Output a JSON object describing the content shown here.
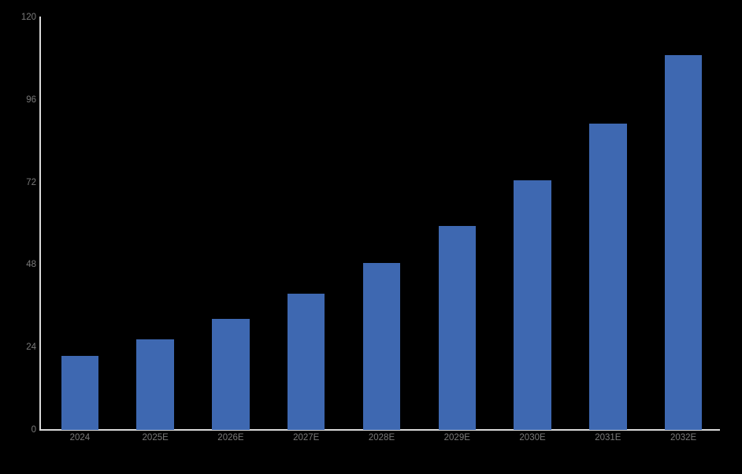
{
  "page": {
    "background_color": "#000000"
  },
  "chart_data": {
    "type": "bar",
    "title": "",
    "xlabel": "",
    "ylabel": "",
    "categories": [
      "2024",
      "2025E",
      "2026E",
      "2027E",
      "2028E",
      "2029E",
      "2030E",
      "2031E",
      "2032E"
    ],
    "values": [
      21.5,
      26.4,
      32.3,
      39.6,
      48.5,
      59.4,
      72.6,
      89.0,
      109.0
    ],
    "ylim": [
      0,
      120
    ],
    "yticks": [
      0,
      24,
      48,
      72,
      96,
      120
    ],
    "grid": false,
    "legend_position": "none",
    "bar_color": "#3e68b1",
    "axis_line_color": "#d9d9d9",
    "tick_label_color": "#7a7a7a",
    "background_color": "#000000"
  }
}
